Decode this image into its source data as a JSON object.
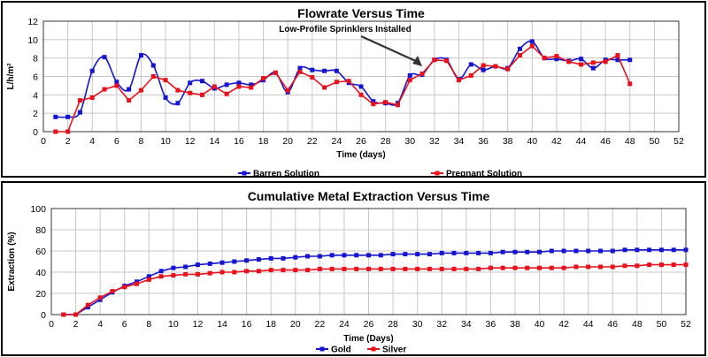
{
  "chart_data": [
    {
      "type": "line",
      "title": "Flowrate Versus Time",
      "xlabel": "Time (days)",
      "ylabel": "L/h/m²",
      "xlim": [
        0,
        52
      ],
      "ylim": [
        0,
        12
      ],
      "xticks": [
        0,
        2,
        4,
        6,
        8,
        10,
        12,
        14,
        16,
        18,
        20,
        22,
        24,
        26,
        28,
        30,
        32,
        34,
        36,
        38,
        40,
        42,
        44,
        46,
        48,
        50,
        52
      ],
      "yticks": [
        0,
        2,
        4,
        6,
        8,
        10,
        12
      ],
      "grid": true,
      "legend": "bottom",
      "annotation": {
        "text": "Low-Profile Sprinklers Installed",
        "x": 31,
        "y": 7.1
      },
      "series": [
        {
          "name": "Barren Solution",
          "color": "#1515d0",
          "marker": "square",
          "smooth": true,
          "x": [
            1,
            2,
            3,
            4,
            5,
            6,
            7,
            8,
            9,
            10,
            11,
            12,
            13,
            14,
            15,
            16,
            17,
            18,
            19,
            20,
            21,
            22,
            23,
            24,
            25,
            26,
            27,
            28,
            29,
            30,
            31,
            32,
            33,
            34,
            35,
            36,
            37,
            38,
            39,
            40,
            41,
            42,
            43,
            44,
            45,
            46,
            47,
            48
          ],
          "y": [
            1.6,
            1.6,
            2.1,
            6.6,
            8.1,
            5.4,
            4.6,
            8.3,
            7.2,
            3.7,
            3.1,
            5.3,
            5.5,
            4.7,
            5.1,
            5.3,
            5.1,
            5.6,
            6.4,
            4.3,
            6.9,
            6.7,
            6.6,
            6.6,
            5.3,
            4.9,
            3.3,
            3.1,
            3.1,
            6.1,
            6.2,
            7.8,
            7.8,
            5.7,
            7.3,
            6.7,
            7.1,
            6.9,
            9.0,
            9.8,
            8.0,
            7.9,
            7.7,
            7.9,
            6.9,
            7.8,
            7.8,
            7.8
          ]
        },
        {
          "name": "Pregnant Solution",
          "color": "#e8101a",
          "marker": "square",
          "smooth": false,
          "x": [
            1,
            2,
            3,
            4,
            5,
            6,
            7,
            8,
            9,
            10,
            11,
            12,
            13,
            14,
            15,
            16,
            17,
            18,
            19,
            20,
            21,
            22,
            23,
            24,
            25,
            26,
            27,
            28,
            29,
            30,
            31,
            32,
            33,
            34,
            35,
            36,
            37,
            38,
            39,
            40,
            41,
            42,
            43,
            44,
            45,
            46,
            47,
            48
          ],
          "y": [
            0.0,
            0.0,
            3.4,
            3.7,
            4.6,
            5.0,
            3.4,
            4.5,
            6.0,
            5.6,
            4.5,
            4.2,
            4.0,
            4.9,
            4.1,
            4.9,
            4.8,
            5.8,
            6.4,
            4.5,
            6.5,
            5.9,
            4.8,
            5.4,
            5.5,
            4.0,
            3.0,
            3.2,
            2.9,
            5.6,
            6.3,
            7.8,
            7.7,
            5.6,
            6.1,
            7.2,
            7.1,
            6.8,
            8.3,
            9.3,
            8.0,
            8.2,
            7.6,
            7.3,
            7.5,
            7.6,
            8.3,
            5.2
          ]
        }
      ]
    },
    {
      "type": "line",
      "title": "Cumulative Metal Extraction Versus Time",
      "xlabel": "Time (Days)",
      "ylabel": "Extraction (%)",
      "xlim": [
        0,
        52
      ],
      "ylim": [
        0,
        100
      ],
      "xticks": [
        0,
        2,
        4,
        6,
        8,
        10,
        12,
        14,
        16,
        18,
        20,
        22,
        24,
        26,
        28,
        30,
        32,
        34,
        36,
        38,
        40,
        42,
        44,
        46,
        48,
        50,
        52
      ],
      "yticks": [
        0,
        20,
        40,
        60,
        80,
        100
      ],
      "grid": true,
      "legend": "bottom",
      "series": [
        {
          "name": "Gold",
          "color": "#1515d0",
          "marker": "square",
          "smooth": false,
          "x": [
            1,
            2,
            3,
            4,
            5,
            6,
            7,
            8,
            9,
            10,
            11,
            12,
            13,
            14,
            15,
            16,
            17,
            18,
            19,
            20,
            21,
            22,
            23,
            24,
            25,
            26,
            27,
            28,
            29,
            30,
            31,
            32,
            33,
            34,
            35,
            36,
            37,
            38,
            39,
            40,
            41,
            42,
            43,
            44,
            45,
            46,
            47,
            48,
            49,
            50,
            51,
            52
          ],
          "y": [
            0,
            0,
            7,
            14,
            21,
            27,
            31,
            36,
            41,
            44,
            45,
            47,
            48,
            49,
            50,
            51,
            52,
            53,
            53,
            54,
            55,
            55,
            56,
            56,
            56,
            56,
            56,
            57,
            57,
            57,
            57,
            58,
            58,
            58,
            58,
            58,
            59,
            59,
            59,
            59,
            60,
            60,
            60,
            60,
            60,
            60,
            61,
            61,
            61,
            61,
            61,
            61
          ]
        },
        {
          "name": "Silver",
          "color": "#e8101a",
          "marker": "square",
          "smooth": false,
          "x": [
            1,
            2,
            3,
            4,
            5,
            6,
            7,
            8,
            9,
            10,
            11,
            12,
            13,
            14,
            15,
            16,
            17,
            18,
            19,
            20,
            21,
            22,
            23,
            24,
            25,
            26,
            27,
            28,
            29,
            30,
            31,
            32,
            33,
            34,
            35,
            36,
            37,
            38,
            39,
            40,
            41,
            42,
            43,
            44,
            45,
            46,
            47,
            48,
            49,
            50,
            51,
            52
          ],
          "y": [
            0,
            0,
            9,
            16,
            22,
            26,
            29,
            33,
            36,
            37,
            38,
            38,
            39,
            40,
            40,
            41,
            41,
            42,
            42,
            42,
            42,
            43,
            43,
            43,
            43,
            43,
            43,
            43,
            43,
            43,
            43,
            43,
            43,
            43,
            43,
            44,
            44,
            44,
            44,
            44,
            44,
            44,
            45,
            45,
            45,
            45,
            46,
            46,
            47,
            47,
            47,
            47
          ]
        }
      ]
    }
  ]
}
